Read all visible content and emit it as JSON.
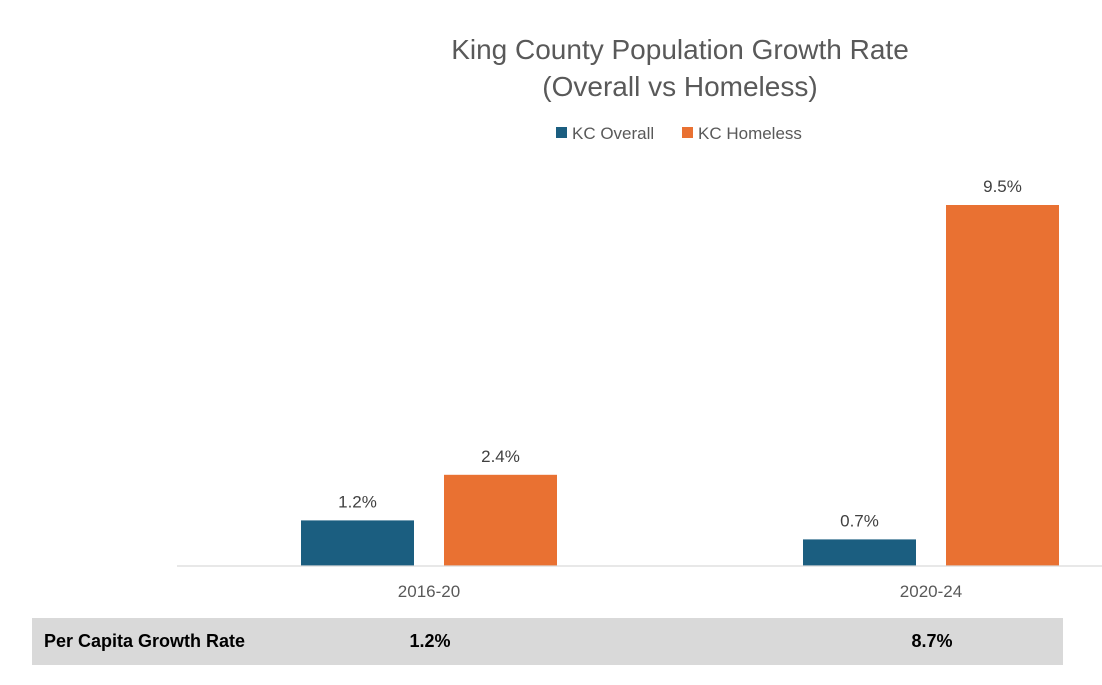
{
  "chart_data": {
    "type": "bar",
    "title": "King County Population Growth Rate",
    "subtitle": "(Overall vs Homeless)",
    "categories": [
      "2016-20",
      "2020-24"
    ],
    "series": [
      {
        "name": "KC Overall",
        "values": [
          1.2,
          0.7
        ],
        "labels": [
          "1.2%",
          "0.7%"
        ],
        "color": "#1b5e80"
      },
      {
        "name": "KC Homeless",
        "values": [
          2.4,
          9.5
        ],
        "labels": [
          "2.4%",
          "9.5%"
        ],
        "color": "#e97132"
      }
    ],
    "xlabel": "",
    "ylabel": "",
    "ylim": [
      0,
      9.5
    ],
    "grid": false,
    "legend": "top-center"
  },
  "table": {
    "row_label": "Per Capita Growth Rate",
    "values": [
      "1.2%",
      "8.7%"
    ]
  }
}
